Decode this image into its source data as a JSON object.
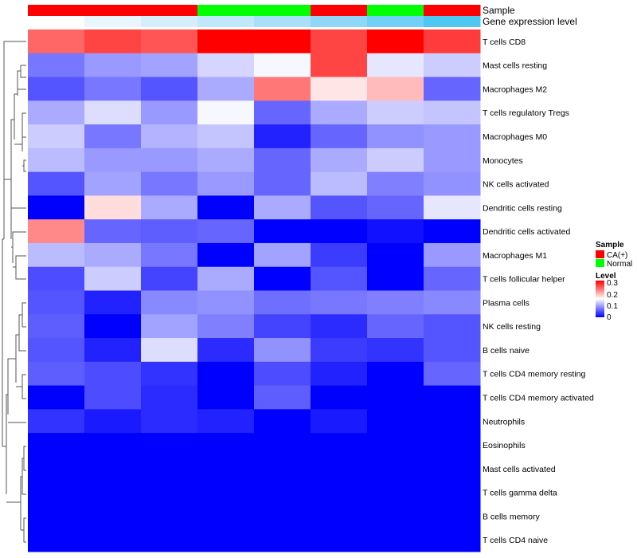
{
  "chart_data": {
    "type": "heatmap",
    "title": "",
    "columns": 8,
    "annotations": {
      "sample_label": "Sample",
      "sample": [
        "CA(+)",
        "CA(+)",
        "CA(+)",
        "Normal",
        "Normal",
        "CA(+)",
        "Normal",
        "CA(+)"
      ],
      "gene_label": "Gene expression level",
      "gene_colors": [
        "#ffffff",
        "#eaf6fd",
        "#d6eefb",
        "#c1e7fa",
        "#aadff9",
        "#90d6f7",
        "#72cff5",
        "#4ec7f3"
      ]
    },
    "rows": [
      "T cells CD8",
      "Mast cells resting",
      "Macrophages M2",
      "T cells regulatory  Tregs",
      "Macrophages M0",
      "Monocytes",
      "NK cells activated",
      "Dendritic cells resting",
      "Dendritic cells activated",
      "Macrophages M1",
      "T cells follicular helper",
      "Plasma cells",
      "NK cells resting",
      "B cells naive",
      "T cells CD4 memory resting",
      "T cells CD4 memory activated",
      "Neutrophils",
      "Eosinophils",
      "Mast cells activated",
      "T cells gamma delta",
      "B cells memory",
      "T cells CD4 naive"
    ],
    "values": [
      [
        0.24,
        0.26,
        0.25,
        0.3,
        0.3,
        0.26,
        0.3,
        0.265
      ],
      [
        0.07,
        0.09,
        0.095,
        0.125,
        0.145,
        0.26,
        0.135,
        0.12
      ],
      [
        0.05,
        0.07,
        0.05,
        0.1,
        0.23,
        0.165,
        0.19,
        0.06
      ],
      [
        0.1,
        0.13,
        0.09,
        0.145,
        0.06,
        0.1,
        0.12,
        0.115
      ],
      [
        0.12,
        0.07,
        0.105,
        0.115,
        0.02,
        0.06,
        0.085,
        0.09
      ],
      [
        0.11,
        0.09,
        0.09,
        0.1,
        0.06,
        0.1,
        0.12,
        0.09
      ],
      [
        0.05,
        0.095,
        0.07,
        0.09,
        0.06,
        0.11,
        0.075,
        0.085
      ],
      [
        0.0,
        0.17,
        0.1,
        0.0,
        0.1,
        0.05,
        0.06,
        0.135
      ],
      [
        0.22,
        0.06,
        0.055,
        0.06,
        0.0,
        0.0,
        0.01,
        0.0
      ],
      [
        0.11,
        0.1,
        0.07,
        0.0,
        0.095,
        0.035,
        0.0,
        0.09
      ],
      [
        0.045,
        0.12,
        0.04,
        0.1,
        0.0,
        0.05,
        0.0,
        0.06
      ],
      [
        0.05,
        0.02,
        0.08,
        0.085,
        0.065,
        0.07,
        0.075,
        0.08
      ],
      [
        0.055,
        0.0,
        0.095,
        0.075,
        0.04,
        0.025,
        0.06,
        0.05
      ],
      [
        0.05,
        0.02,
        0.13,
        0.025,
        0.085,
        0.035,
        0.03,
        0.05
      ],
      [
        0.055,
        0.045,
        0.03,
        0.0,
        0.045,
        0.02,
        0.0,
        0.06
      ],
      [
        0.0,
        0.045,
        0.025,
        0.0,
        0.055,
        0.0,
        0.0,
        0.0
      ],
      [
        0.03,
        0.015,
        0.025,
        0.02,
        0.0,
        0.015,
        0.0,
        0.0
      ],
      [
        0,
        0,
        0,
        0,
        0,
        0,
        0,
        0
      ],
      [
        0,
        0,
        0,
        0,
        0,
        0,
        0,
        0
      ],
      [
        0,
        0,
        0,
        0,
        0,
        0,
        0,
        0
      ],
      [
        0,
        0,
        0,
        0,
        0,
        0,
        0,
        0
      ],
      [
        0,
        0,
        0,
        0,
        0,
        0,
        0,
        0
      ]
    ],
    "color_scale": {
      "min": 0,
      "mid": 0.15,
      "max": 0.3,
      "low": "#0000ff",
      "midColor": "#ffffff",
      "high": "#ff0000"
    },
    "legend": {
      "sample_title": "Sample",
      "sample_entries": [
        {
          "label": "CA(+)",
          "color": "#ff0000"
        },
        {
          "label": "Normal",
          "color": "#00ff00"
        }
      ],
      "level_title": "Level",
      "level_ticks": [
        "0.3",
        "0.2",
        "0.1",
        "0"
      ],
      "placement": "right"
    }
  }
}
